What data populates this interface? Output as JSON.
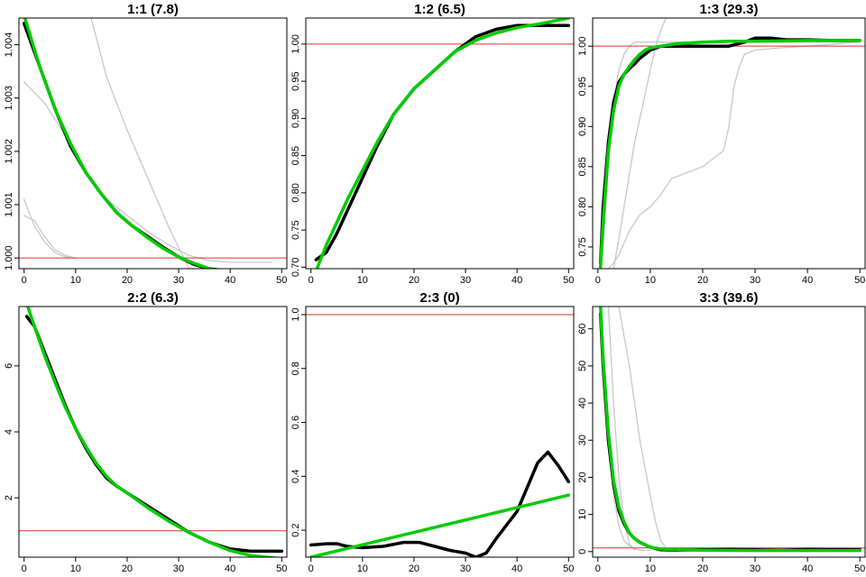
{
  "colors": {
    "mean": "#000000",
    "fit": "#00cc00",
    "reference": "#e03030",
    "chains": "#c8c8c8"
  },
  "chart_data": [
    {
      "type": "line",
      "title": "1:1 (7.8)",
      "xlim": [
        -1,
        51
      ],
      "ylim": [
        999.8,
        1004.5
      ],
      "xticks": [
        0,
        10,
        20,
        30,
        40,
        50
      ],
      "yticks": [
        1000,
        1001,
        1002,
        1003,
        1004
      ],
      "ytick_labels": [
        "1.000",
        "1.001",
        "1.002",
        "1.003",
        "1.004"
      ],
      "hline": 1000.0,
      "series": [
        {
          "role": "chain",
          "x": [
            0,
            4,
            8,
            12,
            16,
            20,
            24,
            28,
            32,
            36,
            40,
            44,
            48
          ],
          "y": [
            1003.3,
            1002.9,
            1002.3,
            1001.6,
            1001.1,
            1000.8,
            1000.5,
            1000.25,
            1000.05,
            999.95,
            999.92,
            999.92,
            999.92
          ]
        },
        {
          "role": "chain",
          "x": [
            0,
            2,
            4,
            6,
            8,
            10
          ],
          "y": [
            1001.1,
            1000.6,
            1000.3,
            1000.1,
            1000.02,
            1000.0
          ]
        },
        {
          "role": "chain",
          "x": [
            0,
            2,
            4,
            6,
            8,
            10
          ],
          "y": [
            1000.8,
            1000.7,
            1000.4,
            1000.15,
            1000.05,
            1000.0
          ]
        },
        {
          "role": "chain",
          "x": [
            13,
            16,
            20,
            24,
            28,
            32
          ],
          "y": [
            1004.5,
            1003.4,
            1002.4,
            1001.5,
            1000.6,
            999.8
          ]
        },
        {
          "role": "mean",
          "x": [
            0,
            3,
            6,
            9,
            12,
            15,
            18,
            21,
            24,
            27,
            30,
            33,
            36,
            40,
            44,
            50
          ],
          "y": [
            1004.4,
            1003.6,
            1002.8,
            1002.1,
            1001.6,
            1001.2,
            1000.85,
            1000.6,
            1000.4,
            1000.2,
            1000.02,
            999.88,
            999.8,
            999.75,
            999.73,
            999.73
          ]
        },
        {
          "role": "fit",
          "x": [
            0,
            3,
            6,
            9,
            12,
            15,
            18,
            21,
            24,
            27,
            30,
            33,
            36,
            40,
            44,
            50
          ],
          "y": [
            1004.55,
            1003.6,
            1002.8,
            1002.15,
            1001.6,
            1001.2,
            1000.85,
            1000.6,
            1000.38,
            1000.18,
            1000.02,
            999.9,
            999.8,
            999.72,
            999.67,
            999.63
          ]
        }
      ]
    },
    {
      "type": "line",
      "title": "1:2 (6.5)",
      "xlim": [
        -1,
        51
      ],
      "ylim": [
        0.698,
        1.035
      ],
      "xticks": [
        0,
        10,
        20,
        30,
        40,
        50
      ],
      "yticks": [
        0.7,
        0.75,
        0.8,
        0.85,
        0.9,
        0.95,
        1.0
      ],
      "ytick_labels": [
        "0.70",
        "0.75",
        "0.80",
        "0.85",
        "0.90",
        "0.95",
        "1.00"
      ],
      "hline": 1.0,
      "series": [
        {
          "role": "mean",
          "x": [
            1,
            3,
            5,
            7,
            10,
            13,
            16,
            20,
            24,
            28,
            32,
            36,
            40,
            45,
            50
          ],
          "y": [
            0.71,
            0.72,
            0.745,
            0.775,
            0.82,
            0.865,
            0.905,
            0.94,
            0.965,
            0.99,
            1.01,
            1.02,
            1.025,
            1.025,
            1.025
          ]
        },
        {
          "role": "fit",
          "x": [
            1,
            3,
            5,
            7,
            10,
            13,
            16,
            20,
            24,
            28,
            32,
            36,
            40,
            45,
            50
          ],
          "y": [
            0.695,
            0.73,
            0.76,
            0.79,
            0.83,
            0.87,
            0.905,
            0.94,
            0.965,
            0.99,
            1.005,
            1.015,
            1.022,
            1.028,
            1.035
          ]
        }
      ]
    },
    {
      "type": "line",
      "title": "1:3 (29.3)",
      "xlim": [
        -1,
        51
      ],
      "ylim": [
        0.723,
        1.035
      ],
      "xticks": [
        0,
        10,
        20,
        30,
        40,
        50
      ],
      "yticks": [
        0.75,
        0.8,
        0.85,
        0.9,
        0.95,
        1.0
      ],
      "ytick_labels": [
        "0.75",
        "0.80",
        "0.85",
        "0.90",
        "0.95",
        "1.00"
      ],
      "hline": 1.0,
      "series": [
        {
          "role": "chain",
          "x": [
            1,
            2,
            3,
            4,
            5,
            6,
            7,
            9,
            12,
            15,
            20,
            30,
            40,
            50
          ],
          "y": [
            0.75,
            0.85,
            0.93,
            0.97,
            0.99,
            1.0,
            1.005,
            1.005,
            1.005,
            1.005,
            1.005,
            1.005,
            1.005,
            1.005
          ]
        },
        {
          "role": "chain",
          "x": [
            3,
            4,
            5,
            6,
            7,
            8,
            9,
            10,
            11,
            12,
            13
          ],
          "y": [
            0.723,
            0.76,
            0.8,
            0.84,
            0.88,
            0.91,
            0.94,
            0.97,
            1.0,
            1.02,
            1.035
          ]
        },
        {
          "role": "chain",
          "x": [
            2,
            3,
            4,
            6,
            8,
            10,
            12,
            14,
            16,
            18,
            20,
            22,
            24,
            25,
            26,
            27,
            28,
            30,
            35,
            40,
            50
          ],
          "y": [
            0.723,
            0.73,
            0.74,
            0.77,
            0.79,
            0.8,
            0.815,
            0.835,
            0.84,
            0.845,
            0.85,
            0.86,
            0.87,
            0.9,
            0.95,
            0.975,
            0.99,
            0.995,
            0.998,
            1.0,
            1.005
          ]
        },
        {
          "role": "mean",
          "x": [
            0.5,
            1,
            2,
            3,
            4,
            5,
            6,
            7,
            8,
            9,
            10,
            12,
            15,
            20,
            25,
            28,
            30,
            33,
            36,
            40,
            45,
            50
          ],
          "y": [
            0.73,
            0.8,
            0.88,
            0.93,
            0.955,
            0.965,
            0.972,
            0.978,
            0.985,
            0.99,
            0.995,
            1.0,
            1.0,
            1.0,
            1.0,
            1.005,
            1.01,
            1.01,
            1.008,
            1.008,
            1.007,
            1.007
          ]
        },
        {
          "role": "fit",
          "x": [
            0.5,
            1,
            2,
            3,
            4,
            5,
            6,
            7,
            8,
            9,
            10,
            12,
            15,
            20,
            25,
            30,
            40,
            50
          ],
          "y": [
            0.725,
            0.78,
            0.87,
            0.92,
            0.95,
            0.965,
            0.975,
            0.983,
            0.99,
            0.995,
            0.998,
            1.0,
            1.003,
            1.005,
            1.006,
            1.006,
            1.007,
            1.007
          ]
        }
      ]
    },
    {
      "type": "line",
      "title": "2:2 (6.3)",
      "xlim": [
        -1,
        51
      ],
      "ylim": [
        0.2,
        7.8
      ],
      "xticks": [
        0,
        10,
        20,
        30,
        40,
        50
      ],
      "yticks": [
        2,
        4,
        6
      ],
      "ytick_labels": [
        "2",
        "4",
        "6"
      ],
      "hline": 1.0,
      "series": [
        {
          "role": "mean",
          "x": [
            0.5,
            2,
            4,
            6,
            8,
            10,
            12,
            14,
            16,
            18,
            20,
            24,
            28,
            32,
            36,
            40,
            44,
            50
          ],
          "y": [
            7.5,
            7.2,
            6.4,
            5.6,
            4.8,
            4.1,
            3.5,
            3.0,
            2.6,
            2.35,
            2.15,
            1.75,
            1.35,
            0.95,
            0.65,
            0.45,
            0.38,
            0.38
          ]
        },
        {
          "role": "fit",
          "x": [
            0.5,
            2,
            4,
            6,
            8,
            10,
            12,
            14,
            16,
            18,
            20,
            24,
            28,
            32,
            36,
            40,
            44,
            50
          ],
          "y": [
            7.9,
            7.2,
            6.3,
            5.5,
            4.75,
            4.1,
            3.55,
            3.05,
            2.65,
            2.35,
            2.15,
            1.7,
            1.3,
            0.95,
            0.65,
            0.4,
            0.25,
            0.15
          ]
        }
      ]
    },
    {
      "type": "line",
      "title": "2:3 (0)",
      "xlim": [
        -1,
        51
      ],
      "ylim": [
        0.1,
        1.03
      ],
      "xticks": [
        0,
        10,
        20,
        30,
        40,
        50
      ],
      "yticks": [
        0.2,
        0.4,
        0.6,
        0.8,
        1.0
      ],
      "ytick_labels": [
        "0.2",
        "0.4",
        "0.6",
        "0.8",
        "1.0"
      ],
      "hline": 1.0,
      "series": [
        {
          "role": "mean",
          "x": [
            0,
            3,
            5,
            7,
            10,
            14,
            18,
            21,
            24,
            27,
            30,
            32,
            34,
            36,
            38,
            40,
            42,
            44,
            46,
            48,
            50
          ],
          "y": [
            0.145,
            0.15,
            0.15,
            0.14,
            0.135,
            0.14,
            0.155,
            0.155,
            0.14,
            0.125,
            0.115,
            0.1,
            0.115,
            0.17,
            0.22,
            0.27,
            0.36,
            0.45,
            0.49,
            0.44,
            0.38
          ]
        },
        {
          "role": "fit",
          "x": [
            0,
            50
          ],
          "y": [
            0.1,
            0.33
          ]
        }
      ]
    },
    {
      "type": "line",
      "title": "3:3 (39.6)",
      "xlim": [
        -1,
        51
      ],
      "ylim": [
        -1.5,
        66
      ],
      "xticks": [
        0,
        10,
        20,
        30,
        40,
        50
      ],
      "yticks": [
        0,
        10,
        20,
        30,
        40,
        50,
        60
      ],
      "ytick_labels": [
        "0",
        "10",
        "20",
        "30",
        "40",
        "50",
        "60"
      ],
      "hline": 1.0,
      "series": [
        {
          "role": "chain",
          "x": [
            1,
            2,
            3,
            4,
            5,
            6,
            7,
            8,
            10
          ],
          "y": [
            55,
            30,
            15,
            7,
            3,
            1.5,
            0.8,
            0.4,
            0.3
          ]
        },
        {
          "role": "chain",
          "x": [
            4,
            6,
            8,
            10,
            11,
            12,
            13,
            15,
            20,
            50
          ],
          "y": [
            66,
            50,
            30,
            15,
            8,
            3,
            1,
            0.5,
            0.3,
            0.3
          ]
        },
        {
          "role": "chain",
          "x": [
            2,
            3,
            4,
            5,
            6,
            7
          ],
          "y": [
            66,
            40,
            20,
            8,
            2,
            0.5
          ]
        },
        {
          "role": "mean",
          "x": [
            0.5,
            1,
            2,
            3,
            4,
            5,
            6,
            7,
            8,
            10,
            12,
            15,
            20,
            25,
            30,
            35,
            40,
            45,
            50
          ],
          "y": [
            64,
            50,
            30,
            18,
            11,
            7.5,
            5,
            3.5,
            2.5,
            1.2,
            0.5,
            0.4,
            0.5,
            0.6,
            0.5,
            0.4,
            0.6,
            0.5,
            0.5
          ]
        },
        {
          "role": "fit",
          "x": [
            0.5,
            1,
            2,
            3,
            4,
            5,
            6,
            7,
            8,
            10,
            12,
            15,
            20,
            30,
            40,
            50
          ],
          "y": [
            66,
            52,
            32,
            19,
            12,
            8,
            5,
            3.5,
            2.5,
            1.2,
            0.7,
            0.5,
            0.4,
            0.3,
            0.3,
            0.3
          ]
        }
      ]
    }
  ]
}
